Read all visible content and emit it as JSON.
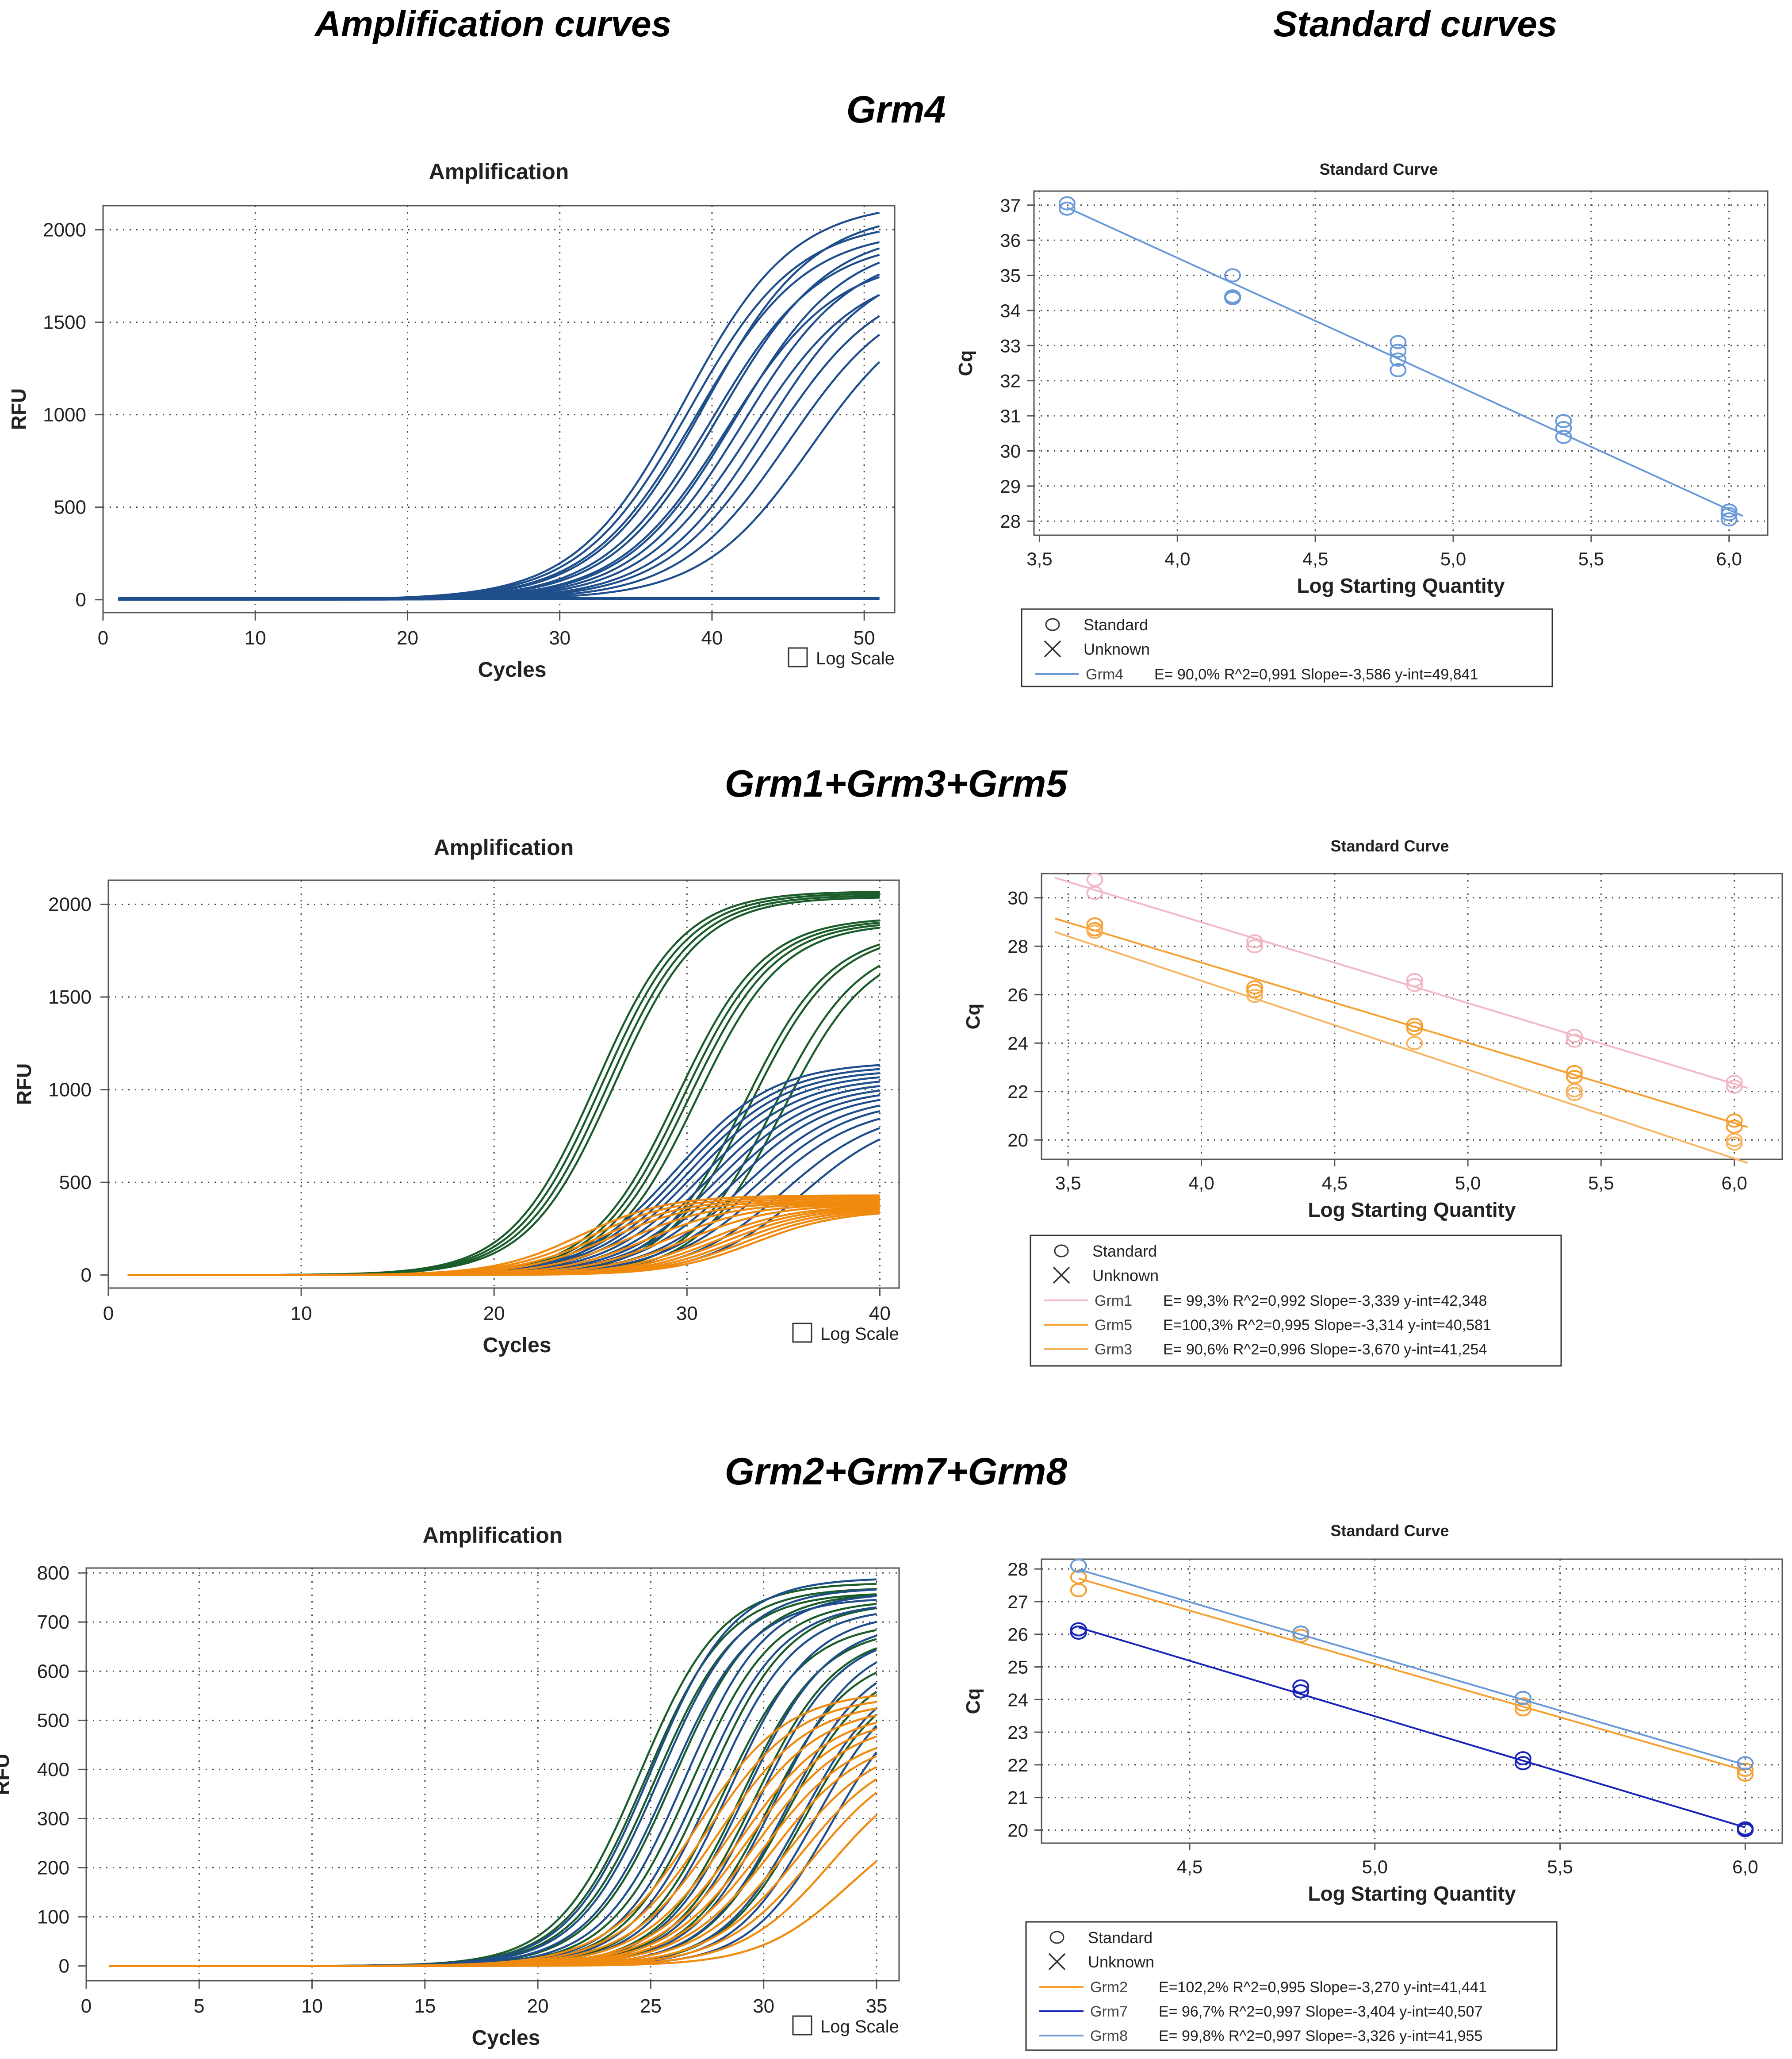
{
  "headers": {
    "amplification": "Amplification curves",
    "standard": "Standard curves"
  },
  "colors": {
    "blue": "#1f4e8c",
    "green": "#1a5c2a",
    "orange": "#f08a0f",
    "light_blue": "#6a9ad8",
    "pink": "#f2b8c6",
    "orange_std": "#f5a030",
    "orange_light": "#f7b562",
    "navy": "#1a24b8"
  },
  "panels": [
    {
      "gene": "Grm4",
      "amplification": {
        "title": "Amplification",
        "xlabel": "Cycles",
        "ylabel": "RFU",
        "xlim": [
          0,
          52
        ],
        "ylim": [
          -70,
          2130
        ],
        "xticks": [
          "0",
          "10",
          "20",
          "30",
          "40",
          "50"
        ],
        "xtick_values": [
          0,
          10,
          20,
          30,
          40,
          50
        ],
        "yticks": [
          "0",
          "500",
          "1000",
          "1500",
          "2000"
        ],
        "ytick_values": [
          0,
          500,
          1000,
          1500,
          2000
        ],
        "grid_x": [
          10,
          20,
          30,
          40,
          50
        ],
        "grid_y": [
          500,
          1000,
          1500,
          2000
        ],
        "checkbox_label": "Log Scale",
        "curve_range": [
          1,
          51
        ]
      },
      "standard": {
        "title": "Standard Curve",
        "xlabel": "Log Starting Quantity",
        "ylabel": "Cq",
        "xlim": [
          3.48,
          6.14
        ],
        "ylim": [
          27.6,
          37.4
        ],
        "xticks": [
          "3,5",
          "4,0",
          "4,5",
          "5,0",
          "5,5",
          "6,0"
        ],
        "xtick_values": [
          3.5,
          4.0,
          4.5,
          5.0,
          5.5,
          6.0
        ],
        "yticks": [
          "28",
          "29",
          "30",
          "31",
          "32",
          "33",
          "34",
          "35",
          "36",
          "37"
        ],
        "ytick_values": [
          28,
          29,
          30,
          31,
          32,
          33,
          34,
          35,
          36,
          37
        ],
        "legend": {
          "markers": [
            "Standard",
            "Unknown"
          ],
          "lines": [
            {
              "name": "Grm4",
              "stats": "E= 90,0% R^2=0,991 Slope=-3,586 y-int=49,841",
              "color": "#6a9ad8"
            }
          ]
        }
      }
    },
    {
      "gene": "Grm1+Grm3+Grm5",
      "amplification": {
        "title": "Amplification",
        "xlabel": "Cycles",
        "ylabel": "RFU",
        "xlim": [
          0,
          41
        ],
        "ylim": [
          -70,
          2130
        ],
        "xticks": [
          "0",
          "10",
          "20",
          "30",
          "40"
        ],
        "xtick_values": [
          0,
          10,
          20,
          30,
          40
        ],
        "yticks": [
          "0",
          "500",
          "1000",
          "1500",
          "2000"
        ],
        "ytick_values": [
          0,
          500,
          1000,
          1500,
          2000
        ],
        "grid_x": [
          10,
          20,
          30,
          40
        ],
        "grid_y": [
          500,
          1000,
          1500,
          2000
        ],
        "checkbox_label": "Log Scale",
        "curve_range": [
          1,
          40
        ]
      },
      "standard": {
        "title": "Standard Curve",
        "xlabel": "Log Starting Quantity",
        "ylabel": "Cq",
        "xlim": [
          3.4,
          6.18
        ],
        "ylim": [
          19.2,
          31.0
        ],
        "xticks": [
          "3,5",
          "4,0",
          "4,5",
          "5,0",
          "5,5",
          "6,0"
        ],
        "xtick_values": [
          3.5,
          4.0,
          4.5,
          5.0,
          5.5,
          6.0
        ],
        "yticks": [
          "20",
          "22",
          "24",
          "26",
          "28",
          "30"
        ],
        "ytick_values": [
          20,
          22,
          24,
          26,
          28,
          30
        ],
        "legend": {
          "markers": [
            "Standard",
            "Unknown"
          ],
          "lines": [
            {
              "name": "Grm1",
              "stats": "E= 99,3% R^2=0,992 Slope=-3,339 y-int=42,348",
              "color": "#f2b8c6"
            },
            {
              "name": "Grm5",
              "stats": "E=100,3% R^2=0,995 Slope=-3,314 y-int=40,581",
              "color": "#f5a030"
            },
            {
              "name": "Grm3",
              "stats": "E= 90,6% R^2=0,996 Slope=-3,670 y-int=41,254",
              "color": "#f7b562"
            }
          ]
        }
      }
    },
    {
      "gene": "Grm2+Grm7+Grm8",
      "amplification": {
        "title": "Amplification",
        "xlabel": "Cycles",
        "ylabel": "RFU",
        "xlim": [
          0,
          36
        ],
        "ylim": [
          -30,
          810
        ],
        "xticks": [
          "0",
          "5",
          "10",
          "15",
          "20",
          "25",
          "30",
          "35"
        ],
        "xtick_values": [
          0,
          5,
          10,
          15,
          20,
          25,
          30,
          35
        ],
        "yticks": [
          "0",
          "100",
          "200",
          "300",
          "400",
          "500",
          "600",
          "700",
          "800"
        ],
        "ytick_values": [
          0,
          100,
          200,
          300,
          400,
          500,
          600,
          700,
          800
        ],
        "grid_x": [
          5,
          10,
          15,
          20,
          25,
          30,
          35
        ],
        "grid_y": [
          100,
          200,
          300,
          400,
          500,
          600,
          700,
          800
        ],
        "checkbox_label": "Log Scale",
        "curve_range": [
          1,
          35
        ]
      },
      "standard": {
        "title": "Standard Curve",
        "xlabel": "Log Starting Quantity",
        "ylabel": "Cq",
        "xlim": [
          4.1,
          6.1
        ],
        "ylim": [
          19.6,
          28.3
        ],
        "xticks": [
          "4,5",
          "5,0",
          "5,5",
          "6,0"
        ],
        "xtick_values": [
          4.5,
          5.0,
          5.5,
          6.0
        ],
        "yticks": [
          "20",
          "21",
          "22",
          "23",
          "24",
          "25",
          "26",
          "27",
          "28"
        ],
        "ytick_values": [
          20,
          21,
          22,
          23,
          24,
          25,
          26,
          27,
          28
        ],
        "legend": {
          "markers": [
            "Standard",
            "Unknown"
          ],
          "lines": [
            {
              "name": "Grm2",
              "stats": "E=102,2% R^2=0,995 Slope=-3,270 y-int=41,441",
              "color": "#f5a030"
            },
            {
              "name": "Grm7",
              "stats": "E= 96,7% R^2=0,997 Slope=-3,404 y-int=40,507",
              "color": "#1a24b8"
            },
            {
              "name": "Grm8",
              "stats": "E= 99,8% R^2=0,997 Slope=-3,326 y-int=41,955",
              "color": "#6a9ad8"
            }
          ]
        }
      }
    }
  ],
  "chart_data": [
    {
      "type": "line",
      "title": "Amplification",
      "panel": "Grm4",
      "xlabel": "Cycles",
      "ylabel": "RFU",
      "xlim": [
        0,
        52
      ],
      "ylim": [
        0,
        2000
      ],
      "series": [
        {
          "color": "#1f4e8c",
          "plateau": [
            2050,
            2150,
            2000,
            2100,
            1950,
            2000,
            1850,
            1950,
            1900,
            1800,
            1850,
            1750,
            1700,
            1650
          ],
          "midpoint": [
            38.5,
            38.2,
            39.0,
            39.5,
            40.0,
            40.5,
            41.0,
            41.5,
            42.0,
            42.5,
            43.5,
            44.0,
            45.0,
            46.5
          ],
          "steepness": 0.28
        },
        {
          "color": "#1f4e8c",
          "flat": true,
          "count": 4
        }
      ]
    },
    {
      "type": "line",
      "title": "Amplification",
      "panel": "Grm1+Grm3+Grm5",
      "xlabel": "Cycles",
      "ylabel": "RFU",
      "xlim": [
        0,
        41
      ],
      "ylim": [
        0,
        2000
      ],
      "series": [
        {
          "color": "#1a5c2a",
          "plateau": [
            2070,
            2060,
            2050,
            2040,
            1930,
            1920,
            1910,
            1900,
            1860,
            1850,
            1810,
            1790
          ],
          "midpoint": [
            25.3,
            25.6,
            25.9,
            26.2,
            29.5,
            29.8,
            30.1,
            30.5,
            33.0,
            33.3,
            34.5,
            35.0
          ],
          "steepness": 0.45
        },
        {
          "color": "#1f4e8c",
          "plateau": [
            1150,
            1130,
            1110,
            1090,
            1070,
            1050,
            1030,
            1010,
            990,
            970,
            950,
            920,
            900,
            880
          ],
          "midpoint": [
            29.5,
            29.8,
            30.1,
            30.4,
            30.8,
            31.2,
            31.6,
            32.0,
            32.4,
            33.0,
            33.5,
            34.0,
            35.0,
            36.0
          ],
          "steepness": 0.4
        },
        {
          "color": "#f08a0f",
          "plateau": [
            430,
            420,
            410,
            400,
            395,
            390,
            385,
            380,
            375,
            370,
            365,
            360,
            355,
            350
          ],
          "midpoint": [
            24.5,
            25.0,
            25.5,
            26.0,
            27.0,
            28.0,
            29.0,
            30.0,
            31.0,
            31.5,
            32.0,
            32.5,
            33.0,
            33.5
          ],
          "steepness": 0.45
        }
      ]
    },
    {
      "type": "line",
      "title": "Amplification",
      "panel": "Grm2+Grm7+Grm8",
      "xlabel": "Cycles",
      "ylabel": "RFU",
      "xlim": [
        0,
        36
      ],
      "ylim": [
        0,
        800
      ],
      "series": [
        {
          "color": "#1a5c2a",
          "plateau": [
            780,
            770,
            760,
            760,
            745,
            740,
            700,
            690,
            680,
            640,
            620,
            600
          ],
          "midpoint": [
            24.5,
            24.8,
            25.2,
            26.0,
            26.8,
            27.5,
            28.2,
            29.0,
            29.6,
            30.2,
            31.0,
            31.8
          ],
          "steepness": 0.55
        },
        {
          "color": "#1f4e8c",
          "plateau": [
            790,
            770,
            750,
            760,
            740,
            730,
            720,
            700,
            680,
            670,
            640,
            610,
            600,
            580
          ],
          "midpoint": [
            25.0,
            25.4,
            25.8,
            26.5,
            27.2,
            27.8,
            28.5,
            29.2,
            29.8,
            30.5,
            31.0,
            31.7,
            32.3,
            33.0
          ],
          "steepness": 0.55
        },
        {
          "color": "#f08a0f",
          "plateau": [
            560,
            550,
            540,
            530,
            520,
            510,
            500,
            480,
            470,
            460,
            450,
            440,
            420,
            330
          ],
          "midpoint": [
            27.0,
            27.5,
            28.0,
            28.5,
            29.0,
            29.3,
            29.7,
            30.0,
            30.4,
            31.0,
            31.6,
            32.2,
            33.0,
            33.8
          ],
          "steepness": 0.5
        }
      ]
    },
    {
      "type": "scatter",
      "title": "Standard Curve",
      "panel": "Grm4",
      "xlabel": "Log Starting Quantity",
      "ylabel": "Cq",
      "xlim": [
        3.48,
        6.14
      ],
      "ylim": [
        27.6,
        37.4
      ],
      "series": [
        {
          "name": "Grm4",
          "color": "#6a9ad8",
          "slope": -3.586,
          "intercept": 49.841,
          "line_x": [
            3.6,
            6.05
          ],
          "points": [
            [
              3.6,
              37.05
            ],
            [
              3.6,
              36.9
            ],
            [
              4.2,
              35.0
            ],
            [
              4.2,
              34.4
            ],
            [
              4.2,
              34.35
            ],
            [
              4.8,
              33.1
            ],
            [
              4.8,
              32.85
            ],
            [
              4.8,
              32.6
            ],
            [
              4.8,
              32.3
            ],
            [
              5.4,
              30.85
            ],
            [
              5.4,
              30.65
            ],
            [
              5.4,
              30.4
            ],
            [
              6.0,
              28.3
            ],
            [
              6.0,
              28.2
            ],
            [
              6.0,
              28.05
            ]
          ]
        }
      ]
    },
    {
      "type": "scatter",
      "title": "Standard Curve",
      "panel": "Grm1+Grm3+Grm5",
      "xlabel": "Log Starting Quantity",
      "ylabel": "Cq",
      "xlim": [
        3.4,
        6.18
      ],
      "ylim": [
        19.2,
        31.0
      ],
      "series": [
        {
          "name": "Grm1",
          "color": "#f2b8c6",
          "slope": -3.339,
          "intercept": 42.348,
          "line_x": [
            3.45,
            6.05
          ],
          "points": [
            [
              3.6,
              30.75
            ],
            [
              3.6,
              30.2
            ],
            [
              4.2,
              28.2
            ],
            [
              4.2,
              28.0
            ],
            [
              4.8,
              26.6
            ],
            [
              4.8,
              26.4
            ],
            [
              5.4,
              24.3
            ],
            [
              5.4,
              24.1
            ],
            [
              6.0,
              22.4
            ],
            [
              6.0,
              22.2
            ]
          ]
        },
        {
          "name": "Grm5",
          "color": "#f5a030",
          "slope": -3.314,
          "intercept": 40.581,
          "line_x": [
            3.45,
            6.05
          ],
          "points": [
            [
              3.6,
              28.9
            ],
            [
              3.6,
              28.7
            ],
            [
              4.2,
              26.3
            ],
            [
              4.2,
              26.15
            ],
            [
              4.8,
              24.75
            ],
            [
              4.8,
              24.6
            ],
            [
              5.4,
              22.8
            ],
            [
              5.4,
              22.6
            ],
            [
              6.0,
              20.8
            ],
            [
              6.0,
              20.55
            ]
          ]
        },
        {
          "name": "Grm3",
          "color": "#f7b562",
          "slope": -3.67,
          "intercept": 41.254,
          "line_x": [
            3.45,
            6.05
          ],
          "points": [
            [
              3.6,
              28.6
            ],
            [
              4.2,
              25.95
            ],
            [
              4.8,
              24.0
            ],
            [
              5.4,
              22.05
            ],
            [
              5.4,
              21.9
            ],
            [
              6.0,
              20.0
            ],
            [
              6.0,
              19.85
            ]
          ]
        }
      ]
    },
    {
      "type": "scatter",
      "title": "Standard Curve",
      "panel": "Grm2+Grm7+Grm8",
      "xlabel": "Log Starting Quantity",
      "ylabel": "Cq",
      "xlim": [
        4.1,
        6.1
      ],
      "ylim": [
        19.6,
        28.3
      ],
      "series": [
        {
          "name": "Grm2",
          "color": "#f5a030",
          "slope": -3.27,
          "intercept": 41.441,
          "line_x": [
            4.2,
            6.0
          ],
          "points": [
            [
              4.2,
              27.75
            ],
            [
              4.2,
              27.35
            ],
            [
              4.8,
              25.95
            ],
            [
              5.4,
              23.85
            ],
            [
              5.4,
              23.7
            ],
            [
              6.0,
              21.85
            ],
            [
              6.0,
              21.7
            ]
          ]
        },
        {
          "name": "Grm7",
          "color": "#1a24b8",
          "slope": -3.404,
          "intercept": 40.507,
          "line_x": [
            4.2,
            6.0
          ],
          "points": [
            [
              4.2,
              26.15
            ],
            [
              4.2,
              26.05
            ],
            [
              4.8,
              24.4
            ],
            [
              4.8,
              24.25
            ],
            [
              5.4,
              22.2
            ],
            [
              5.4,
              22.05
            ],
            [
              6.0,
              20.05
            ],
            [
              6.0,
              20.0
            ]
          ]
        },
        {
          "name": "Grm8",
          "color": "#6a9ad8",
          "slope": -3.326,
          "intercept": 41.955,
          "line_x": [
            4.2,
            6.0
          ],
          "points": [
            [
              4.2,
              28.1
            ],
            [
              4.8,
              26.05
            ],
            [
              5.4,
              24.05
            ],
            [
              6.0,
              22.05
            ]
          ]
        }
      ]
    }
  ]
}
